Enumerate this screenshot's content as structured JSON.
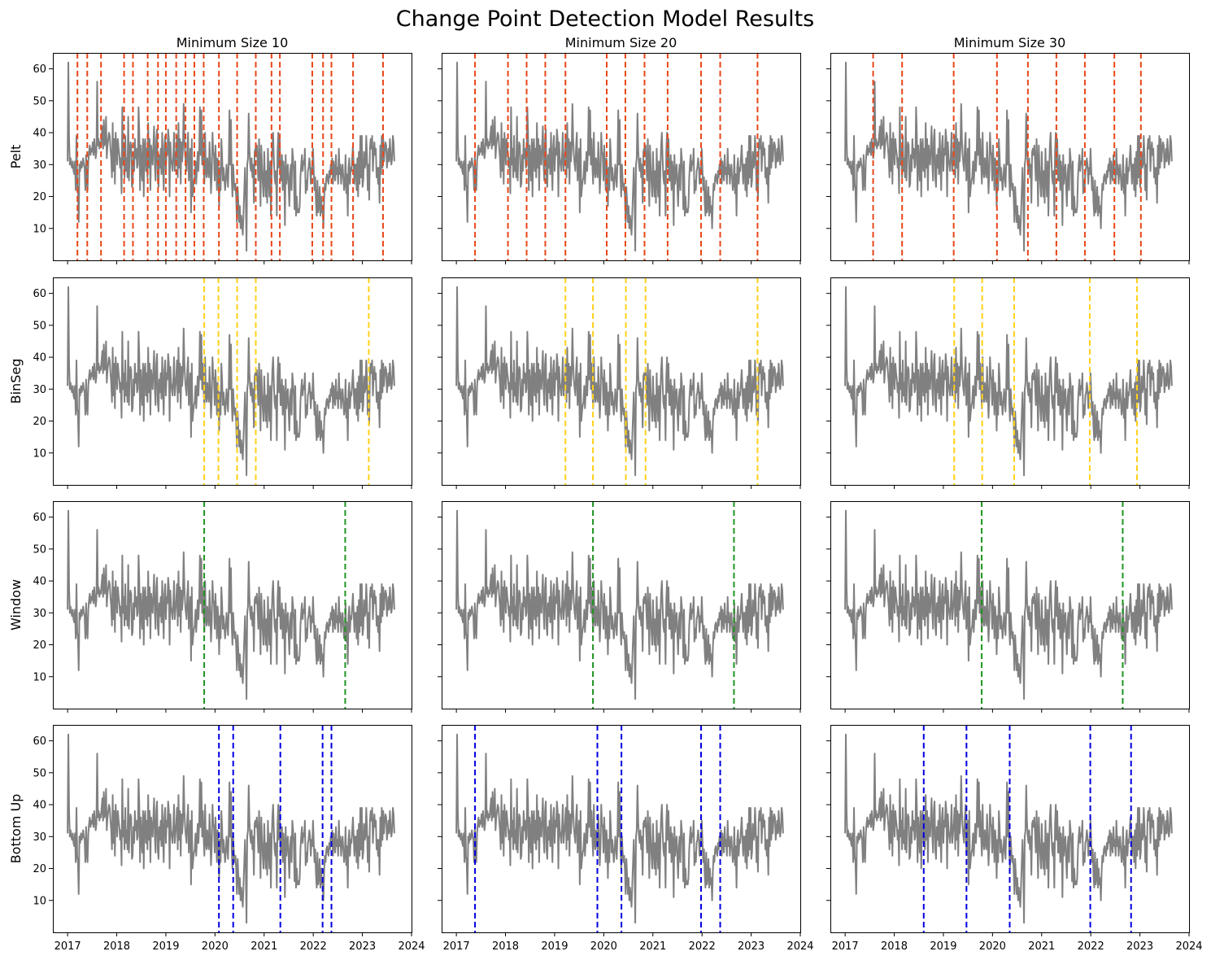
{
  "chart_data": {
    "type": "line",
    "title": "Change Point Detection Model Results",
    "columns": [
      "Minimum Size 10",
      "Minimum Size 20",
      "Minimum Size 30"
    ],
    "rows": [
      {
        "label": "Pelt",
        "color": "#e8471a"
      },
      {
        "label": "BinSeg",
        "color": "#ffd11a"
      },
      {
        "label": "Window",
        "color": "#1f9421"
      },
      {
        "label": "Bottom Up",
        "color": "#0000e0"
      }
    ],
    "xlim": [
      2016.7,
      2024.0
    ],
    "ylim": [
      0,
      65
    ],
    "x_ticks": [
      2017,
      2018,
      2019,
      2020,
      2021,
      2022,
      2023,
      2024
    ],
    "x_tick_labels": [
      "2017",
      "2018",
      "2019",
      "2020",
      "2021",
      "2022",
      "2023",
      "2024"
    ],
    "y_ticks": [
      10,
      20,
      30,
      40,
      50,
      60
    ],
    "y_tick_labels": [
      "10",
      "20",
      "30",
      "40",
      "50",
      "60"
    ],
    "series_values_start": 2017.0,
    "series_values_end": 2023.65,
    "series_values": [
      31,
      62,
      38,
      30,
      32,
      30,
      29,
      31,
      28,
      27,
      31,
      22,
      39,
      24,
      22,
      12,
      30,
      28,
      31,
      29,
      30,
      32,
      30,
      29,
      22,
      33,
      24,
      22,
      31,
      34,
      36,
      33,
      35,
      34,
      37,
      33,
      38,
      35,
      32,
      34,
      56,
      36,
      38,
      35,
      37,
      36,
      39,
      42,
      35,
      44,
      36,
      37,
      45,
      32,
      36,
      38,
      40,
      39,
      35,
      32,
      26,
      43,
      28,
      38,
      24,
      40,
      36,
      30,
      38,
      35,
      33,
      29,
      32,
      21,
      48,
      30,
      35,
      26,
      39,
      28,
      32,
      26,
      45,
      25,
      34,
      37,
      36,
      23,
      24,
      33,
      28,
      38,
      32,
      35,
      29,
      30,
      48,
      40,
      22,
      36,
      30,
      25,
      38,
      20,
      36,
      38,
      28,
      35,
      26,
      43,
      29,
      38,
      22,
      36,
      33,
      30,
      36,
      42,
      30,
      25,
      38,
      41,
      26,
      23,
      33,
      29,
      35,
      27,
      40,
      30,
      22,
      36,
      39,
      28,
      35,
      33,
      41,
      38,
      20,
      37,
      32,
      30,
      28,
      33,
      40,
      28,
      31,
      34,
      39,
      26,
      43,
      29,
      38,
      24,
      37,
      31,
      35,
      49,
      38,
      33,
      30,
      28,
      36,
      40,
      25,
      29,
      35,
      15,
      38,
      20,
      23,
      25,
      26,
      31,
      24,
      29,
      34,
      28,
      34,
      48,
      33,
      47,
      30,
      38,
      30,
      24,
      40,
      28,
      26,
      32,
      28,
      26,
      37,
      30,
      21,
      27,
      40,
      34,
      33,
      25,
      36,
      30,
      22,
      32,
      28,
      17,
      29,
      22,
      38,
      33,
      25,
      29,
      26,
      22,
      25,
      30,
      27,
      23,
      31,
      47,
      30,
      44,
      26,
      20,
      30,
      25,
      22,
      24,
      20,
      12,
      23,
      18,
      12,
      17,
      10,
      14,
      11,
      8,
      15,
      22,
      29,
      20,
      3,
      30,
      32,
      46,
      35,
      30,
      28,
      32,
      26,
      30,
      18,
      34,
      35,
      33,
      36,
      31,
      25,
      38,
      30,
      17,
      36,
      29,
      24,
      20,
      34,
      26,
      20,
      28,
      18,
      35,
      26,
      20,
      31,
      14,
      28,
      36,
      40,
      32,
      26,
      24,
      28,
      14,
      34,
      40,
      29,
      38,
      25,
      25,
      33,
      22,
      31,
      28,
      11,
      33,
      24,
      28,
      30,
      23,
      17,
      27,
      30,
      22,
      35,
      32,
      28,
      16,
      31,
      14,
      20,
      15,
      16,
      15,
      17,
      26,
      30,
      33,
      28,
      31,
      30,
      35,
      21,
      25,
      22,
      28,
      29,
      32,
      30,
      24,
      29,
      27,
      35,
      28,
      22,
      26,
      18,
      14,
      25,
      15,
      17,
      23,
      14,
      20,
      15,
      17,
      10,
      19,
      24,
      22,
      26,
      27,
      25,
      24,
      28,
      26,
      30,
      28,
      32,
      24,
      31,
      27,
      25,
      33,
      27,
      29,
      24,
      35,
      27,
      30,
      24,
      28,
      30,
      26,
      22,
      24,
      33,
      21,
      27,
      14,
      29,
      32,
      24,
      29,
      28,
      32,
      36,
      30,
      24,
      30,
      30,
      22,
      32,
      20,
      34,
      24,
      39,
      26,
      39,
      23,
      25,
      34,
      29,
      30,
      39,
      33,
      22,
      30,
      19,
      35,
      38,
      35,
      39,
      28,
      34,
      37,
      33,
      35,
      26,
      29,
      24,
      29,
      18,
      36,
      27,
      39,
      29,
      38,
      31,
      35,
      37,
      36,
      29,
      32,
      35,
      31,
      38,
      33,
      30,
      32,
      39,
      37,
      31
    ],
    "change_points": [
      [
        [
          2017.2,
          2017.4,
          2017.68,
          2018.15,
          2018.33,
          2018.63,
          2018.84,
          2019.0,
          2019.21,
          2019.4,
          2019.58,
          2019.77,
          2020.08,
          2020.45,
          2020.83,
          2021.15,
          2021.32,
          2021.98,
          2022.2,
          2022.37,
          2022.81,
          2023.42
        ],
        [
          2017.38,
          2018.05,
          2018.43,
          2018.81,
          2019.22,
          2020.06,
          2020.44,
          2020.83,
          2021.3,
          2021.98,
          2022.37,
          2023.13
        ],
        [
          2017.57,
          2018.16,
          2019.21,
          2020.09,
          2020.72,
          2021.3,
          2021.88,
          2022.48,
          2023.02
        ]
      ],
      [
        [
          2019.78,
          2020.07,
          2020.45,
          2020.83,
          2023.13
        ],
        [
          2019.22,
          2019.78,
          2020.45,
          2020.85,
          2023.13
        ],
        [
          2019.22,
          2019.79,
          2020.44,
          2021.98,
          2022.94
        ]
      ],
      [
        [
          2019.78,
          2022.65
        ],
        [
          2019.78,
          2022.65
        ],
        [
          2019.78,
          2022.65
        ]
      ],
      [
        [
          2020.08,
          2020.37,
          2021.33,
          2022.19,
          2022.37
        ],
        [
          2017.38,
          2019.87,
          2020.36,
          2021.98,
          2022.37
        ],
        [
          2018.6,
          2019.47,
          2020.35,
          2021.99,
          2022.82
        ]
      ]
    ]
  }
}
